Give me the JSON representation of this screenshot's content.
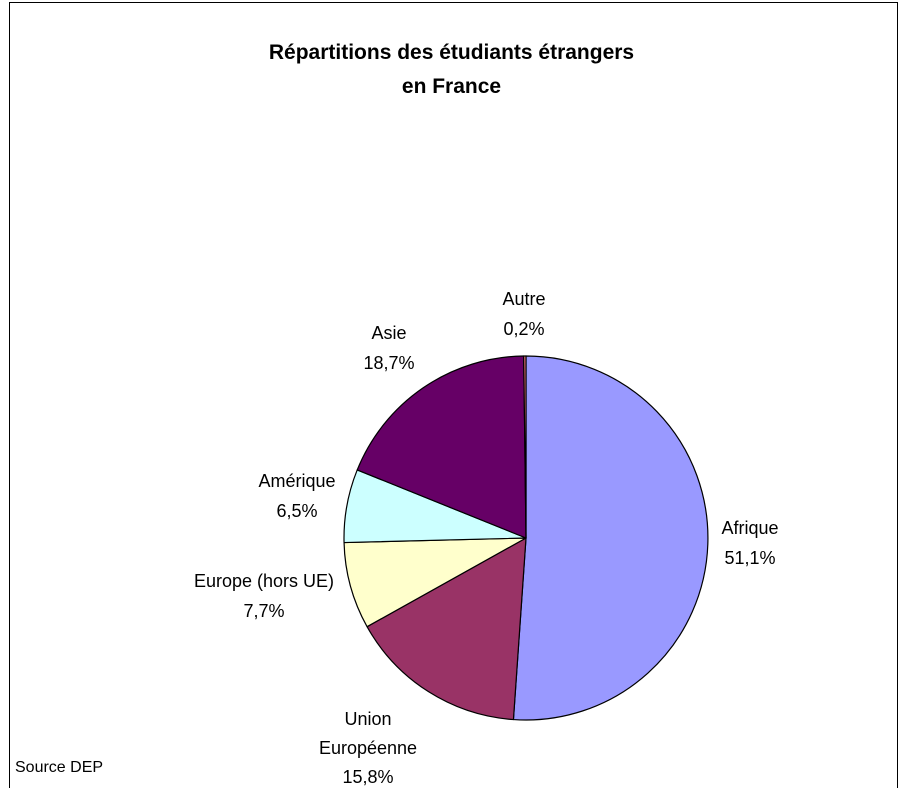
{
  "chart_data": {
    "type": "pie",
    "title_line1": "Répartitions des étudiants étrangers",
    "title_line2": "en France",
    "source": "Source DEP",
    "slices": [
      {
        "name": "Afrique",
        "value": 51.1,
        "label": "51,1%",
        "color": "#9999ff"
      },
      {
        "name": "Union Européenne",
        "label_line1": "Union",
        "label_line2": "Européenne",
        "value": 15.8,
        "label": "15,8%",
        "color": "#993366"
      },
      {
        "name": "Europe (hors UE)",
        "value": 7.7,
        "label": "7,7%",
        "color": "#ffffcc"
      },
      {
        "name": "Amérique",
        "value": 6.5,
        "label": "6,5%",
        "color": "#ccffff"
      },
      {
        "name": "Asie",
        "value": 18.7,
        "label": "18,7%",
        "color": "#660066"
      },
      {
        "name": "Autre",
        "value": 0.2,
        "label": "0,2%",
        "color": "#ff8080"
      }
    ]
  }
}
